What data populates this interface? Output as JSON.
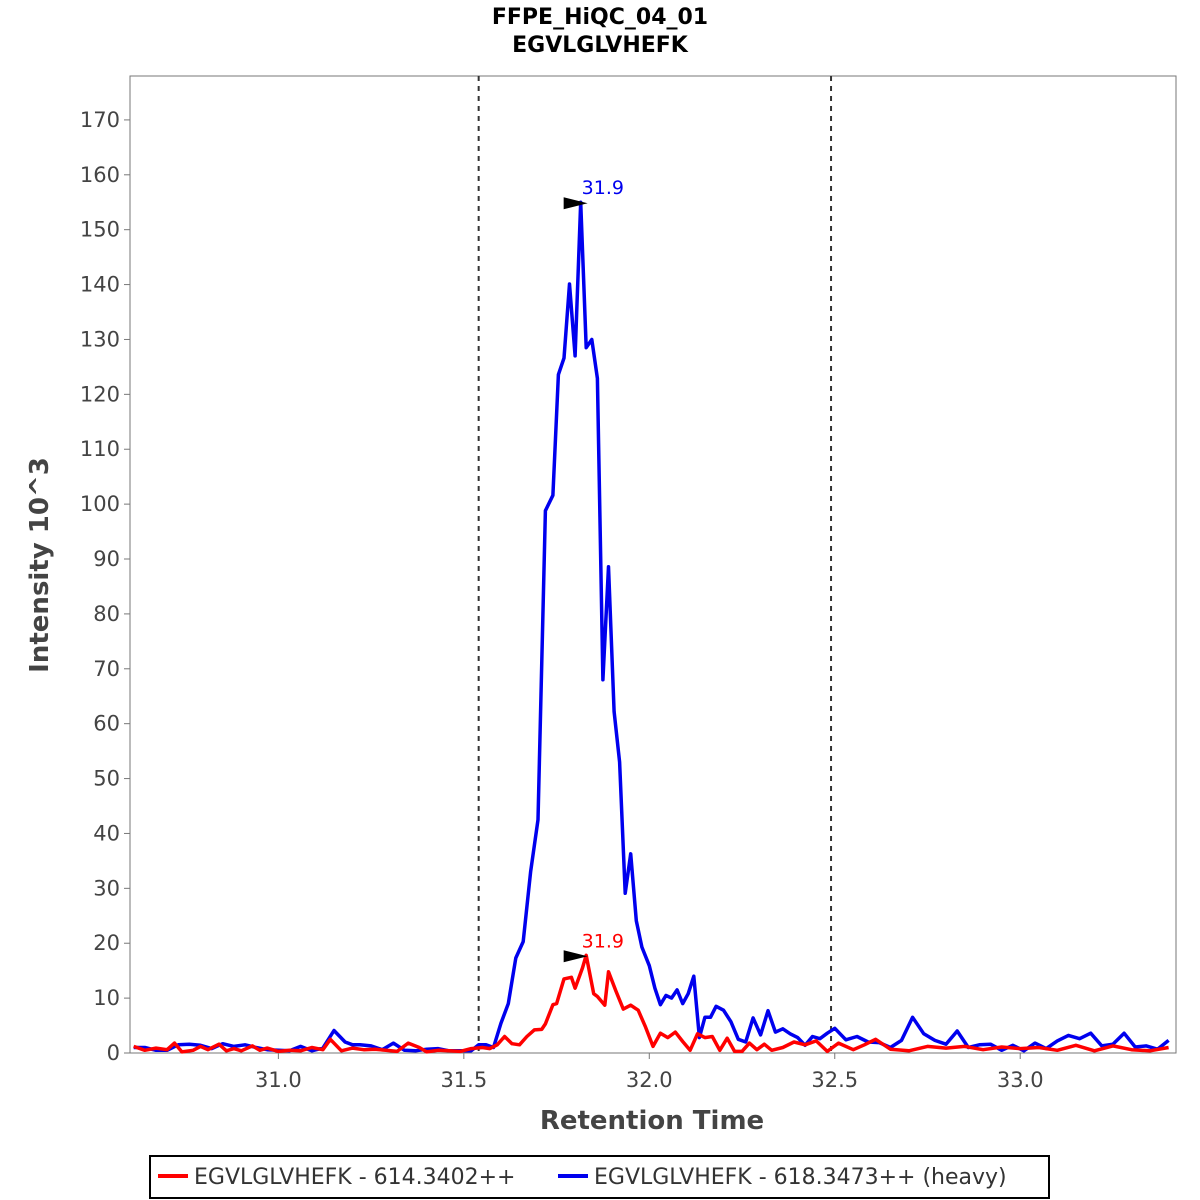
{
  "chart_data": {
    "type": "line",
    "title": "FFPE_HiQC_04_01",
    "subtitle": "EGVLGLVHEFK",
    "xlabel": "Retention Time",
    "ylabel": "Intensity 10^3",
    "xlim": [
      30.6,
      33.42
    ],
    "ylim": [
      0,
      178
    ],
    "xticks": [
      31.0,
      31.5,
      32.0,
      32.5,
      33.0
    ],
    "xtick_labels": [
      "31.0",
      "31.5",
      "32.0",
      "32.5",
      "33.0"
    ],
    "yticks": [
      0,
      10,
      20,
      30,
      40,
      50,
      60,
      70,
      80,
      90,
      100,
      110,
      120,
      130,
      140,
      150,
      160,
      170
    ],
    "ytick_labels": [
      "0",
      "10",
      "20",
      "30",
      "40",
      "50",
      "60",
      "70",
      "80",
      "90",
      "100",
      "110",
      "120",
      "130",
      "140",
      "150",
      "160",
      "170"
    ],
    "boundaries": [
      31.54,
      32.49
    ],
    "grid": false,
    "legend_position": "bottom",
    "series": [
      {
        "name": "EGVLGLVHEFK - 614.3402++",
        "color": "#ff0000",
        "peak_label": "31.9",
        "peak_x": 31.85,
        "peak_y": 17.8,
        "x": [
          30.61,
          30.64,
          30.67,
          30.7,
          30.72,
          30.74,
          30.77,
          30.79,
          30.81,
          30.84,
          30.86,
          30.88,
          30.9,
          30.93,
          30.95,
          30.97,
          31.0,
          31.03,
          31.06,
          31.09,
          31.12,
          31.14,
          31.17,
          31.2,
          31.23,
          31.26,
          31.29,
          31.32,
          31.35,
          31.38,
          31.4,
          31.43,
          31.46,
          31.49,
          31.52,
          31.55,
          31.57,
          31.59,
          31.61,
          31.63,
          31.65,
          31.67,
          31.69,
          31.71,
          31.72,
          31.74,
          31.75,
          31.77,
          31.79,
          31.8,
          31.82,
          31.83,
          31.85,
          31.86,
          31.88,
          31.89,
          31.91,
          31.93,
          31.95,
          31.97,
          31.99,
          32.01,
          32.03,
          32.05,
          32.07,
          32.09,
          32.11,
          32.13,
          32.15,
          32.17,
          32.19,
          32.21,
          32.23,
          32.25,
          32.27,
          32.29,
          32.31,
          32.33,
          32.36,
          32.39,
          32.42,
          32.45,
          32.48,
          32.51,
          32.55,
          32.58,
          32.61,
          32.65,
          32.7,
          32.75,
          32.8,
          32.85,
          32.9,
          32.95,
          33.0,
          33.05,
          33.1,
          33.15,
          33.2,
          33.25,
          33.3,
          33.35,
          33.4
        ],
        "y": [
          1.2,
          0.5,
          0.9,
          0.6,
          1.8,
          0.2,
          0.5,
          1.2,
          0.6,
          1.6,
          0.4,
          0.8,
          0.4,
          1.3,
          0.5,
          0.9,
          0.3,
          0.5,
          0.4,
          1.0,
          0.6,
          2.5,
          0.4,
          0.9,
          0.6,
          0.7,
          0.5,
          0.3,
          1.8,
          1.0,
          0.2,
          0.5,
          0.4,
          0.3,
          0.8,
          1.0,
          0.8,
          1.5,
          3.0,
          1.7,
          1.5,
          3.0,
          4.2,
          4.3,
          5.3,
          8.8,
          9.0,
          13.5,
          13.8,
          11.8,
          15.5,
          17.8,
          10.8,
          10.3,
          8.7,
          14.8,
          11.3,
          8.0,
          8.7,
          7.8,
          4.7,
          1.2,
          3.6,
          2.8,
          3.8,
          2.1,
          0.5,
          3.5,
          2.8,
          3.0,
          0.5,
          2.7,
          0.3,
          0.3,
          1.8,
          0.6,
          1.6,
          0.5,
          1.0,
          2.0,
          1.5,
          2.2,
          0.3,
          1.8,
          0.6,
          1.5,
          2.5,
          0.7,
          0.4,
          1.2,
          0.9,
          1.2,
          0.6,
          1.1,
          0.8,
          1.0,
          0.5,
          1.4,
          0.4,
          1.3,
          0.6,
          0.4,
          1.0
        ]
      },
      {
        "name": "EGVLGLVHEFK - 618.3473++ (heavy)",
        "color": "#0000ee",
        "peak_label": "31.9",
        "peak_x": 31.85,
        "peak_y": 155.0,
        "x": [
          30.61,
          30.64,
          30.67,
          30.7,
          30.73,
          30.76,
          30.79,
          30.82,
          30.85,
          30.88,
          30.91,
          30.94,
          30.97,
          31.0,
          31.03,
          31.06,
          31.09,
          31.12,
          31.15,
          31.18,
          31.2,
          31.22,
          31.25,
          31.28,
          31.31,
          31.34,
          31.37,
          31.4,
          31.43,
          31.46,
          31.49,
          31.52,
          31.54,
          31.56,
          31.58,
          31.6,
          31.62,
          31.64,
          31.66,
          31.68,
          31.7,
          31.72,
          31.74,
          31.755,
          31.77,
          31.785,
          31.8,
          31.815,
          31.83,
          31.845,
          31.86,
          31.875,
          31.89,
          31.905,
          31.92,
          31.935,
          31.95,
          31.965,
          31.98,
          32.0,
          32.015,
          32.03,
          32.045,
          32.06,
          32.075,
          32.09,
          32.105,
          32.12,
          32.135,
          32.15,
          32.165,
          32.18,
          32.2,
          32.22,
          32.24,
          32.26,
          32.28,
          32.3,
          32.32,
          32.34,
          32.36,
          32.38,
          32.4,
          32.42,
          32.44,
          32.46,
          32.48,
          32.5,
          32.53,
          32.56,
          32.59,
          32.62,
          32.65,
          32.68,
          32.71,
          32.74,
          32.77,
          32.8,
          32.83,
          32.86,
          32.89,
          32.92,
          32.95,
          32.98,
          33.01,
          33.04,
          33.07,
          33.1,
          33.13,
          33.16,
          33.19,
          33.22,
          33.25,
          33.28,
          33.31,
          33.34,
          33.37,
          33.4
        ],
        "y": [
          1.0,
          1.0,
          0.5,
          0.5,
          1.5,
          1.6,
          1.4,
          0.8,
          1.7,
          1.2,
          1.5,
          1.0,
          0.6,
          0.5,
          0.4,
          1.2,
          0.4,
          0.9,
          4.1,
          2.0,
          1.5,
          1.5,
          1.3,
          0.6,
          1.8,
          0.5,
          0.4,
          0.7,
          0.8,
          0.4,
          0.4,
          0.4,
          1.5,
          1.5,
          1.0,
          5.4,
          9.0,
          17.3,
          20.3,
          33.0,
          42.5,
          98.8,
          101.6,
          123.6,
          126.6,
          140.1,
          127.0,
          155.0,
          128.5,
          130.0,
          122.9,
          68.0,
          88.6,
          62.2,
          53.0,
          29.1,
          36.3,
          24.1,
          19.3,
          15.9,
          11.8,
          8.8,
          10.5,
          10.0,
          11.5,
          9.0,
          10.8,
          14.0,
          2.8,
          6.5,
          6.5,
          8.5,
          7.8,
          5.7,
          2.5,
          2.0,
          6.4,
          3.3,
          7.7,
          3.8,
          4.4,
          3.5,
          2.8,
          1.4,
          3.0,
          2.6,
          3.6,
          4.5,
          2.4,
          3.0,
          2.0,
          1.9,
          1.0,
          2.3,
          6.5,
          3.5,
          2.3,
          1.6,
          4.0,
          1.0,
          1.5,
          1.6,
          0.5,
          1.4,
          0.4,
          1.8,
          0.8,
          2.2,
          3.2,
          2.6,
          3.6,
          1.3,
          1.6,
          3.6,
          1.1,
          1.3,
          0.7,
          2.3
        ]
      }
    ]
  }
}
